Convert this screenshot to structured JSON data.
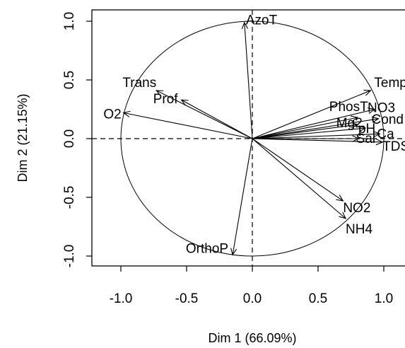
{
  "chart_data": {
    "type": "scatter",
    "subtype": "pca-correlation-circle",
    "xlabel": "Dim 1 (66.09%)",
    "ylabel": "Dim 2 (21.15%)",
    "xlim": [
      -1.2,
      1.2
    ],
    "ylim": [
      -1.1,
      1.1
    ],
    "xticks": [
      "-1.0",
      "-0.5",
      "0.0",
      "0.5",
      "1.0"
    ],
    "yticks": [
      "-1.0",
      "-0.5",
      "0.0",
      "0.5",
      "1.0"
    ],
    "unit_circle": true,
    "reference_lines": "dashed at x=0 and y=0",
    "variables": [
      {
        "name": "AzoT",
        "x": -0.06,
        "y": 0.99
      },
      {
        "name": "Trans",
        "x": -0.73,
        "y": 0.41
      },
      {
        "name": "Prof",
        "x": -0.54,
        "y": 0.33
      },
      {
        "name": "O2",
        "x": -0.98,
        "y": 0.22
      },
      {
        "name": "Temp",
        "x": 0.9,
        "y": 0.41
      },
      {
        "name": "NO3",
        "x": 0.93,
        "y": 0.25
      },
      {
        "name": "PhosT",
        "x": 0.8,
        "y": 0.18
      },
      {
        "name": "Cond",
        "x": 0.96,
        "y": 0.17
      },
      {
        "name": "Mg2",
        "x": 0.8,
        "y": 0.12
      },
      {
        "name": "pH",
        "x": 0.86,
        "y": 0.09
      },
      {
        "name": "Ca",
        "x": 0.97,
        "y": 0.04
      },
      {
        "name": "Sal",
        "x": 0.81,
        "y": 0.0
      },
      {
        "name": "TDS",
        "x": 0.99,
        "y": -0.03
      },
      {
        "name": "NO2",
        "x": 0.69,
        "y": -0.53
      },
      {
        "name": "NH4",
        "x": 0.71,
        "y": -0.68
      },
      {
        "name": "OrthoP",
        "x": -0.15,
        "y": -0.99
      }
    ]
  }
}
